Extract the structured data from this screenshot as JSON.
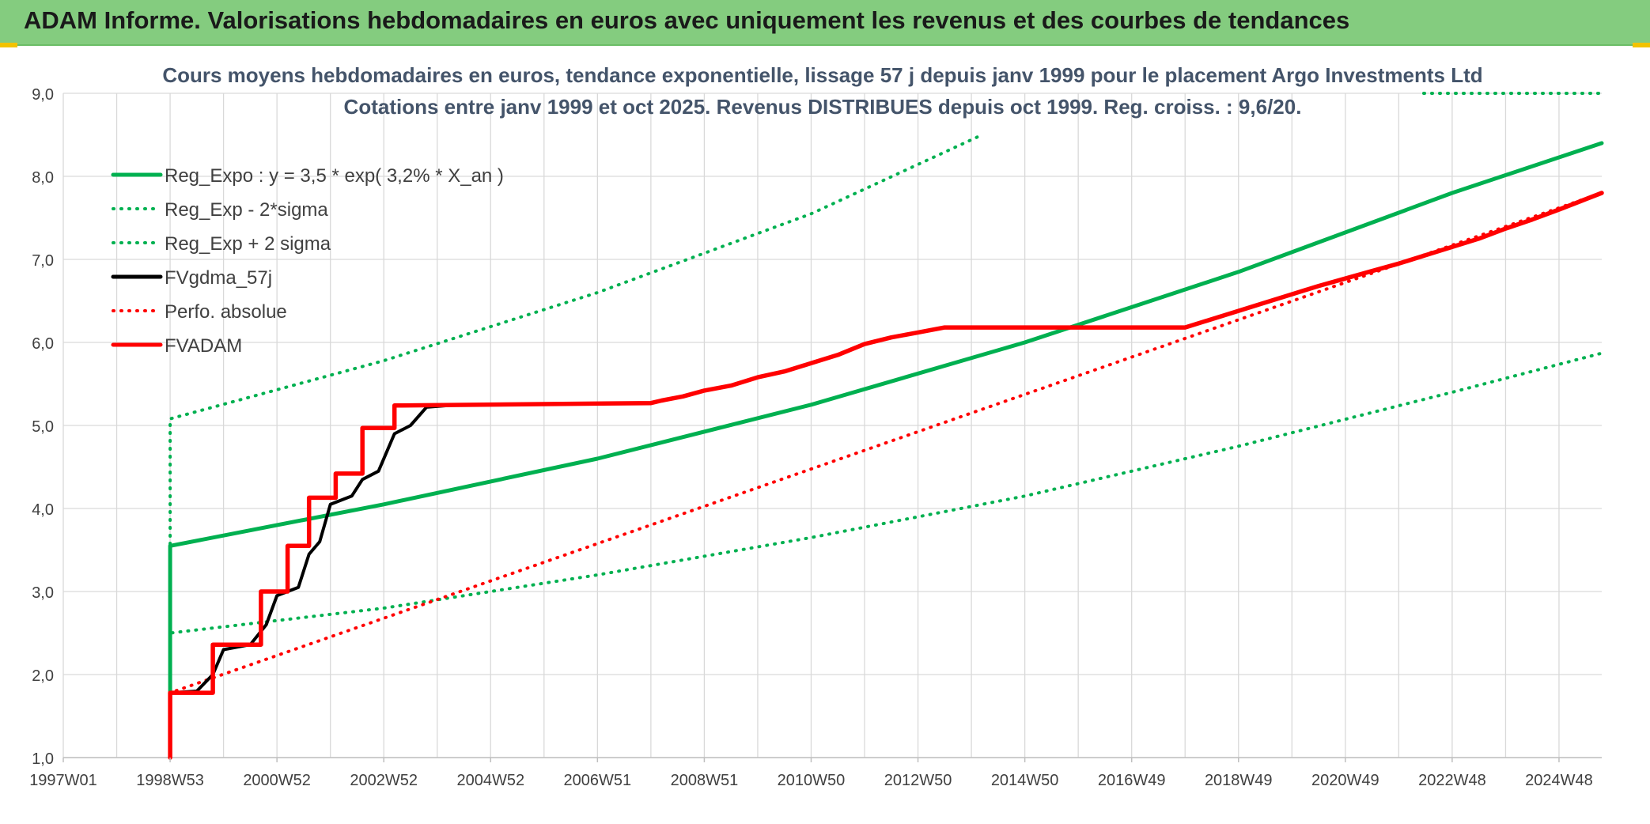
{
  "header": {
    "title": "ADAM Informe. Valorisations hebdomadaires en euros avec uniquement les revenus et des courbes de tendances"
  },
  "colors": {
    "green": "#00b050",
    "black": "#000000",
    "red": "#ff0000",
    "grid": "#d9d9d9",
    "title_bar": "#84cc7f",
    "text": "#404040",
    "chart_title": "#44546a"
  },
  "chart_data": {
    "type": "line",
    "title": "Cours moyens hebdomadaires en euros, tendance exponentielle, lissage 57 j depuis janv 1999 pour le placement Argo Investments Ltd",
    "subtitle": "Cotations entre janv 1999 et oct 2025. Revenus DISTRIBUES depuis oct 1999. Reg. croiss. : 9,6/20.",
    "xlabel": "",
    "ylabel": "",
    "ylim": [
      1.0,
      9.0
    ],
    "y_ticks": [
      "1,0",
      "2,0",
      "3,0",
      "4,0",
      "5,0",
      "6,0",
      "7,0",
      "8,0",
      "9,0"
    ],
    "x_ticks": [
      "1997W01",
      "1998W53",
      "2000W52",
      "2002W52",
      "2004W52",
      "2006W51",
      "2008W51",
      "2010W50",
      "2012W50",
      "2014W50",
      "2016W49",
      "2018W49",
      "2020W49",
      "2022W48",
      "2024W48"
    ],
    "xlim": [
      1997.0,
      2025.8
    ],
    "grid": true,
    "legend_position": "top-left",
    "series": [
      {
        "name": "Reg_Expo : y = 3,5 * exp( 3,2% *  X_an )",
        "style": "solid",
        "color": "#00b050",
        "points": [
          [
            1999.0,
            1.0
          ],
          [
            1999.0,
            3.55
          ],
          [
            2003,
            4.05
          ],
          [
            2007,
            4.6
          ],
          [
            2011,
            5.25
          ],
          [
            2015,
            6.0
          ],
          [
            2019,
            6.85
          ],
          [
            2023,
            7.8
          ],
          [
            2025.8,
            8.4
          ]
        ]
      },
      {
        "name": "Reg_Exp - 2*sigma",
        "style": "dotted",
        "color": "#00b050",
        "points": [
          [
            1999.0,
            1.0
          ],
          [
            1999.0,
            2.5
          ],
          [
            2003,
            2.8
          ],
          [
            2007,
            3.2
          ],
          [
            2011,
            3.65
          ],
          [
            2015,
            4.15
          ],
          [
            2019,
            4.75
          ],
          [
            2023,
            5.4
          ],
          [
            2025.8,
            5.87
          ]
        ]
      },
      {
        "name": "Reg_Exp + 2 sigma",
        "style": "dotted",
        "color": "#00b050",
        "points": [
          [
            1999.0,
            1.0
          ],
          [
            1999.0,
            5.08
          ],
          [
            2003,
            5.78
          ],
          [
            2007,
            6.6
          ],
          [
            2011,
            7.55
          ],
          [
            2014.2,
            8.5
          ]
        ]
      },
      {
        "name": "FVgdma_57j",
        "style": "solid",
        "color": "#000000",
        "points": [
          [
            1999.0,
            1.0
          ],
          [
            1999.0,
            1.78
          ],
          [
            1999.5,
            1.8
          ],
          [
            1999.8,
            2.0
          ],
          [
            2000.0,
            2.3
          ],
          [
            2000.5,
            2.36
          ],
          [
            2000.8,
            2.6
          ],
          [
            2001.0,
            2.95
          ],
          [
            2001.4,
            3.05
          ],
          [
            2001.6,
            3.45
          ],
          [
            2001.8,
            3.6
          ],
          [
            2002.0,
            4.05
          ],
          [
            2002.4,
            4.15
          ],
          [
            2002.6,
            4.35
          ],
          [
            2002.9,
            4.45
          ],
          [
            2003.2,
            4.9
          ],
          [
            2003.5,
            5.0
          ],
          [
            2003.8,
            5.22
          ],
          [
            2004.4,
            5.25
          ],
          [
            2008.0,
            5.27
          ]
        ]
      },
      {
        "name": "Perfo. absolue",
        "style": "dotted",
        "color": "#ff0000",
        "points": [
          [
            1999.0,
            1.0
          ],
          [
            1999.0,
            1.78
          ],
          [
            2025.8,
            7.8
          ]
        ]
      },
      {
        "name": "FVADAM",
        "style": "solid",
        "color": "#ff0000",
        "points": [
          [
            1999.0,
            1.0
          ],
          [
            1999.0,
            1.78
          ],
          [
            1999.8,
            1.78
          ],
          [
            1999.8,
            2.36
          ],
          [
            2000.7,
            2.36
          ],
          [
            2000.7,
            3.0
          ],
          [
            2001.2,
            3.0
          ],
          [
            2001.2,
            3.55
          ],
          [
            2001.6,
            3.55
          ],
          [
            2001.6,
            4.13
          ],
          [
            2002.1,
            4.13
          ],
          [
            2002.1,
            4.42
          ],
          [
            2002.6,
            4.42
          ],
          [
            2002.6,
            4.97
          ],
          [
            2003.2,
            4.97
          ],
          [
            2003.2,
            5.24
          ],
          [
            2008.0,
            5.27
          ],
          [
            2008.2,
            5.3
          ],
          [
            2008.6,
            5.35
          ],
          [
            2009.0,
            5.42
          ],
          [
            2009.5,
            5.48
          ],
          [
            2010.0,
            5.58
          ],
          [
            2010.5,
            5.65
          ],
          [
            2011.0,
            5.75
          ],
          [
            2011.5,
            5.85
          ],
          [
            2012.0,
            5.98
          ],
          [
            2012.5,
            6.06
          ],
          [
            2013.0,
            6.12
          ],
          [
            2013.5,
            6.18
          ],
          [
            2017.0,
            6.18
          ],
          [
            2018.0,
            6.18
          ],
          [
            2018.5,
            6.28
          ],
          [
            2019.0,
            6.38
          ],
          [
            2019.5,
            6.48
          ],
          [
            2020.0,
            6.58
          ],
          [
            2020.5,
            6.68
          ],
          [
            2021.0,
            6.77
          ],
          [
            2021.5,
            6.86
          ],
          [
            2022.0,
            6.95
          ],
          [
            2022.5,
            7.05
          ],
          [
            2023.0,
            7.15
          ],
          [
            2023.5,
            7.25
          ],
          [
            2024.0,
            7.37
          ],
          [
            2024.5,
            7.48
          ],
          [
            2025.0,
            7.6
          ],
          [
            2025.4,
            7.7
          ],
          [
            2025.8,
            7.8
          ]
        ]
      }
    ]
  }
}
